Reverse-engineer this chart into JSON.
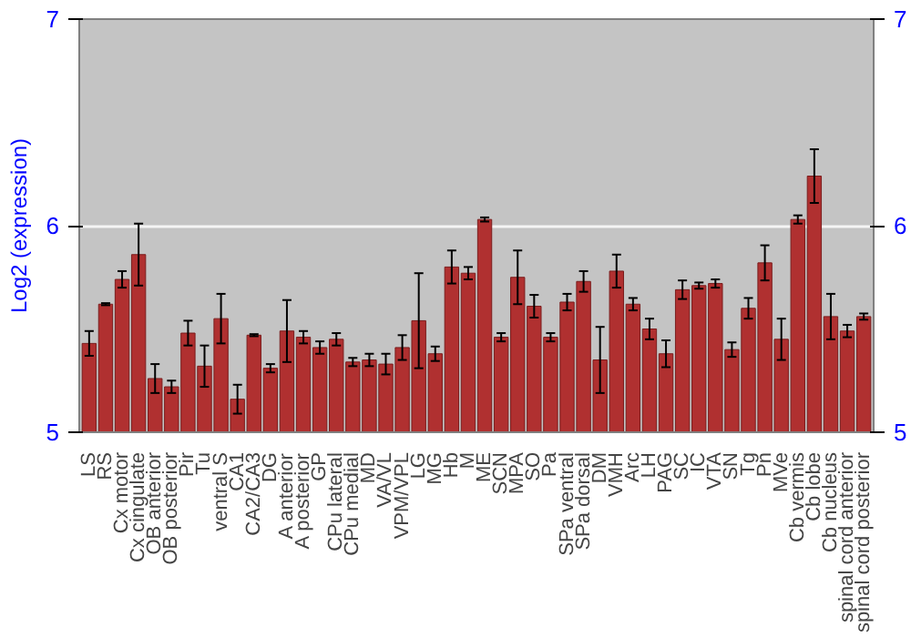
{
  "chart_data": {
    "type": "bar",
    "ylabel": "Log2 (expression)",
    "categories": [
      "LS",
      "RS",
      "Cx motor",
      "Cx cingulate",
      "OB anterior",
      "OB posterior",
      "Pir",
      "Tu",
      "ventral S",
      "CA1",
      "CA2/CA3",
      "DG",
      "A anterior",
      "A posterior",
      "GP",
      "CPu lateral",
      "CPu medial",
      "MD",
      "VA/VL",
      "VPM/VPL",
      "LG",
      "MG",
      "Hb",
      "M",
      "ME",
      "SCN",
      "MPA",
      "SO",
      "Pa",
      "SPa ventral",
      "SPa dorsal",
      "DM",
      "VMH",
      "Arc",
      "LH",
      "PAG",
      "SC",
      "IC",
      "VTA",
      "SN",
      "Tg",
      "Pn",
      "MVe",
      "Cb vermis",
      "Cb lobe",
      "Cb nucleus",
      "spinal cord anterior",
      "spinal cord posterior"
    ],
    "values": [
      5.43,
      5.62,
      5.74,
      5.86,
      5.26,
      5.22,
      5.48,
      5.32,
      5.55,
      5.16,
      5.47,
      5.31,
      5.49,
      5.46,
      5.41,
      5.45,
      5.34,
      5.35,
      5.33,
      5.41,
      5.54,
      5.38,
      5.8,
      5.77,
      6.03,
      5.46,
      5.75,
      5.61,
      5.46,
      5.63,
      5.73,
      5.35,
      5.78,
      5.62,
      5.5,
      5.38,
      5.69,
      5.71,
      5.72,
      5.4,
      5.6,
      5.82,
      5.45,
      6.03,
      6.24,
      5.56,
      5.49,
      5.56
    ],
    "errors": [
      0.06,
      0.005,
      0.04,
      0.15,
      0.07,
      0.03,
      0.06,
      0.1,
      0.12,
      0.07,
      0.005,
      0.02,
      0.15,
      0.03,
      0.03,
      0.03,
      0.02,
      0.03,
      0.05,
      0.06,
      0.23,
      0.035,
      0.08,
      0.03,
      0.01,
      0.02,
      0.13,
      0.055,
      0.02,
      0.04,
      0.05,
      0.16,
      0.08,
      0.03,
      0.05,
      0.065,
      0.045,
      0.015,
      0.02,
      0.035,
      0.05,
      0.085,
      0.1,
      0.02,
      0.13,
      0.11,
      0.03,
      0.015
    ],
    "color": "#b03030",
    "ylim": [
      5,
      7
    ],
    "yticks": [
      5,
      6,
      7
    ],
    "y2lim": [
      5,
      7
    ],
    "y2ticks": [
      5,
      6,
      7
    ],
    "grid": "y"
  }
}
